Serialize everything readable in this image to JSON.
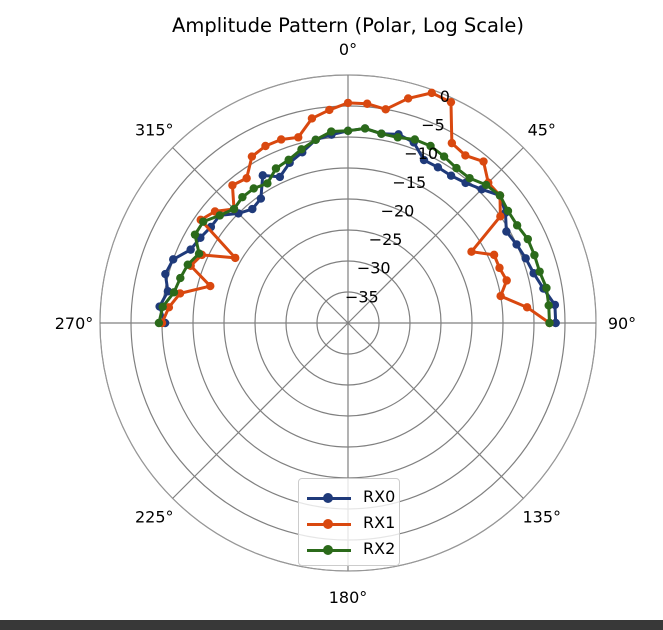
{
  "title": "Amplitude Pattern (Polar, Log Scale)",
  "chart_data": {
    "type": "line",
    "subtype": "polar",
    "title": "Amplitude Pattern (Polar, Log Scale)",
    "theta_direction": "clockwise",
    "theta_zero_location": "N",
    "theta_ticks": [
      "0°",
      "45°",
      "90°",
      "135°",
      "180°",
      "225°",
      "270°",
      "315°"
    ],
    "r_ticks": [
      -35,
      -30,
      -25,
      -20,
      -15,
      -10,
      -5,
      0
    ],
    "r_tick_labels": [
      "−35",
      "−30",
      "−25",
      "−20",
      "−15",
      "−10",
      "−5",
      "0"
    ],
    "rlim": [
      -40,
      0
    ],
    "grid": true,
    "legend_position": "lower center",
    "angles_deg": [
      -90,
      -85,
      -80,
      -75,
      -70,
      -65,
      -60,
      -55,
      -50,
      -45,
      -40,
      -35,
      -30,
      -25,
      -20,
      -15,
      -10,
      -5,
      0,
      5,
      10,
      15,
      20,
      25,
      30,
      35,
      40,
      45,
      50,
      55,
      60,
      65,
      70,
      75,
      80,
      85,
      90
    ],
    "series": [
      {
        "name": "RX0",
        "color": "#1f3a7a",
        "values": [
          -10.5,
          -9.5,
          -10.5,
          -9.5,
          -10,
          -12,
          -12.5,
          -13,
          -13,
          -15,
          -16,
          -15.5,
          -12.5,
          -14,
          -12.5,
          -11.5,
          -10,
          -9.5,
          -9,
          -8.5,
          -9,
          -8.5,
          -9,
          -11,
          -11,
          -11,
          -10.5,
          -9.5,
          -8,
          -9,
          -10.5,
          -10,
          -9.5,
          -9,
          -8,
          -6.5,
          -6.5
        ]
      },
      {
        "name": "RX1",
        "color": "#d9480f",
        "values": [
          -10,
          -11,
          -12.5,
          -17,
          -13,
          -14,
          -19,
          -11,
          -12,
          -14,
          -11,
          -11.5,
          -9,
          -8.5,
          -8.5,
          -9,
          -6.5,
          -5.5,
          -4.5,
          -4.5,
          -5,
          -2.5,
          -0.5,
          -0.7,
          -6.5,
          -7,
          -6,
          -8,
          -8,
          -10,
          -17,
          -14,
          -14,
          -13.5,
          -15,
          -11,
          -7.5
        ]
      },
      {
        "name": "RX2",
        "color": "#2b6a1a",
        "values": [
          -9.5,
          -10,
          -11.5,
          -12,
          -12.5,
          -13.5,
          -11.5,
          -11.5,
          -13,
          -14,
          -13.5,
          -13.5,
          -14,
          -12.5,
          -12,
          -11,
          -10,
          -9,
          -9,
          -8.5,
          -9,
          -9,
          -8.5,
          -8.5,
          -9,
          -9.5,
          -9.5,
          -8.5,
          -8,
          -8.5,
          -8.5,
          -8,
          -8,
          -8,
          -7.5,
          -7.5,
          -7.5
        ]
      }
    ]
  },
  "legend": {
    "items": [
      {
        "label": "RX0",
        "color": "#1f3a7a"
      },
      {
        "label": "RX1",
        "color": "#d9480f"
      },
      {
        "label": "RX2",
        "color": "#2b6a1a"
      }
    ]
  }
}
